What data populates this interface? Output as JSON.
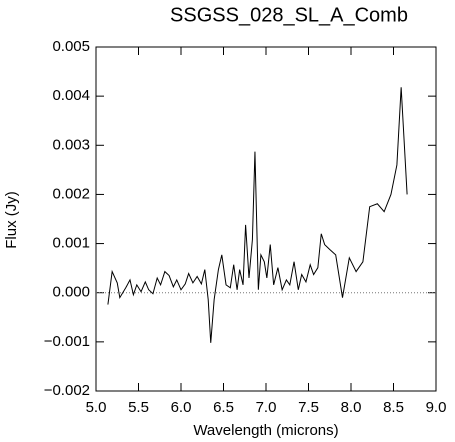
{
  "chart_data": {
    "type": "line",
    "title": "SSGSS_028_SL_A_Comb",
    "x_label": "Wavelength (microns)",
    "y_label": "Flux (Jy)",
    "xlim": [
      5.0,
      9.0
    ],
    "xticks": [
      {
        "value": 5,
        "label": "5.0"
      },
      {
        "value": 5.5,
        "label": "5.5"
      },
      {
        "value": 6,
        "label": "6.0"
      },
      {
        "value": 6.5,
        "label": "6.5"
      },
      {
        "value": 7,
        "label": "7.0"
      },
      {
        "value": 7.5,
        "label": "7.5"
      },
      {
        "value": 8,
        "label": "8.0"
      },
      {
        "value": 8.5,
        "label": "8.5"
      },
      {
        "value": 9,
        "label": "9.0"
      }
    ],
    "ylim": [
      -0.002,
      0.005
    ],
    "yticks": [
      {
        "value": -0.002,
        "label": "−0.002"
      },
      {
        "value": -0.001,
        "label": "−0.001"
      },
      {
        "value": 0,
        "label": "0.000"
      },
      0.001,
      0.002,
      0.003,
      0.004,
      0.005
    ],
    "color": "#000000",
    "x": [
      5.14,
      5.19,
      5.25,
      5.28,
      5.35,
      5.4,
      5.44,
      5.48,
      5.53,
      5.58,
      5.62,
      5.67,
      5.72,
      5.76,
      5.81,
      5.86,
      5.91,
      5.95,
      6.0,
      6.05,
      6.09,
      6.14,
      6.19,
      6.24,
      6.28,
      6.32,
      6.35,
      6.39,
      6.44,
      6.48,
      6.53,
      6.58,
      6.62,
      6.66,
      6.69,
      6.73,
      6.76,
      6.8,
      6.84,
      6.87,
      6.91,
      6.94,
      6.98,
      7.01,
      7.05,
      7.09,
      7.14,
      7.19,
      7.24,
      7.28,
      7.33,
      7.38,
      7.42,
      7.47,
      7.52,
      7.56,
      7.61,
      7.65,
      7.69,
      7.75,
      7.82,
      7.9,
      7.98,
      8.06,
      8.14,
      8.22,
      8.31,
      8.39,
      8.47,
      8.54,
      8.59,
      8.66
    ],
    "values": [
      -0.00024,
      0.00043,
      0.0002,
      -0.0001,
      0.0001,
      0.00026,
      -4e-05,
      0.00016,
      2e-05,
      0.00022,
      6e-05,
      -2e-05,
      0.0003,
      0.00016,
      0.00043,
      0.00035,
      0.00012,
      0.00026,
      6e-05,
      0.00018,
      0.00039,
      0.0002,
      0.00033,
      0.00018,
      0.00047,
      -0.00014,
      -0.00102,
      -0.00014,
      0.00047,
      0.00077,
      0.00016,
      0.0001,
      0.00057,
      6e-05,
      0.00047,
      0.00016,
      0.00138,
      0.0003,
      0.00108,
      0.00287,
      6e-05,
      0.00077,
      0.00063,
      0.0003,
      0.00098,
      0.00016,
      0.00051,
      6e-05,
      0.00026,
      0.00016,
      0.00063,
      6e-05,
      0.00037,
      0.00022,
      0.00057,
      0.00037,
      0.00051,
      0.0012,
      0.00098,
      0.00088,
      0.00077,
      -0.0001,
      0.00071,
      0.00043,
      0.00063,
      0.00175,
      0.00181,
      0.00165,
      0.002,
      0.0026,
      0.00418,
      0.002
    ]
  }
}
